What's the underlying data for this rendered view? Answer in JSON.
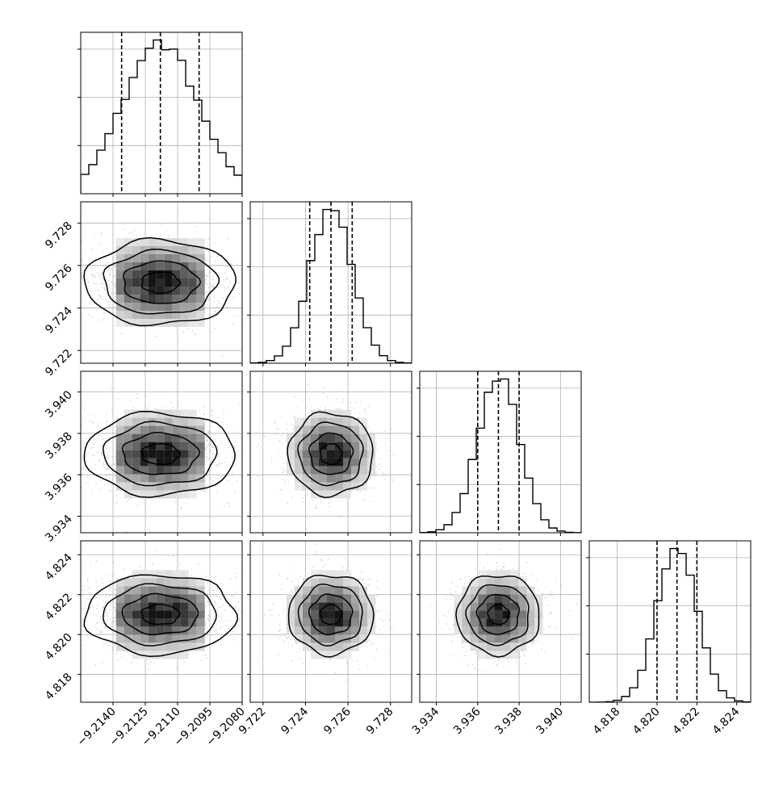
{
  "chart_data": {
    "type": "corner",
    "grid": true,
    "quantile_lines": "dashed",
    "colors": {
      "line": "#000000",
      "scatter": "#9a9a9a",
      "grid": "#b0b0b0",
      "fill_dark": "#000000"
    },
    "params": [
      {
        "center": -9.2118,
        "sigma": 0.00175,
        "range": [
          -9.2155,
          -9.208
        ],
        "quantiles": [
          -9.2136,
          -9.2118,
          -9.21
        ],
        "ticks": [
          -9.214,
          -9.2125,
          -9.211,
          -9.2095,
          -9.208
        ],
        "tick_labels": [
          "−9.2140",
          "−9.2125",
          "−9.2110",
          "−9.2095",
          "−9.2080"
        ]
      },
      {
        "center": 9.7252,
        "sigma": 0.001,
        "range": [
          9.7214,
          9.729
        ],
        "quantiles": [
          9.7242,
          9.7252,
          9.7262
        ],
        "ticks": [
          9.722,
          9.724,
          9.726,
          9.728
        ],
        "tick_labels": [
          "9.722",
          "9.724",
          "9.726",
          "9.728"
        ]
      },
      {
        "center": 3.937,
        "sigma": 0.001,
        "range": [
          3.9332,
          3.941
        ],
        "quantiles": [
          3.936,
          3.937,
          3.938
        ],
        "ticks": [
          3.934,
          3.936,
          3.938,
          3.94
        ],
        "tick_labels": [
          "3.934",
          "3.936",
          "3.938",
          "3.940"
        ]
      },
      {
        "center": 4.821,
        "sigma": 0.001,
        "range": [
          4.8166,
          4.8247
        ],
        "quantiles": [
          4.82,
          4.821,
          4.822
        ],
        "ticks": [
          4.818,
          4.82,
          4.822,
          4.824
        ],
        "tick_labels": [
          "4.818",
          "4.820",
          "4.822",
          "4.824"
        ]
      }
    ],
    "histogram_bins": 20,
    "contour_levels_sigma": [
      0.5,
      1.0,
      1.5,
      2.0
    ]
  }
}
